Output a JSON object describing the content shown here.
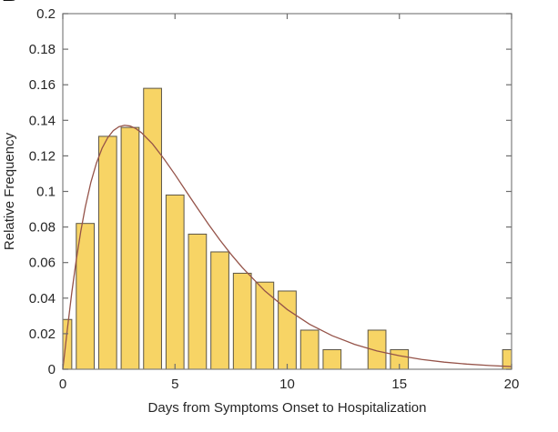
{
  "panel_label": "B",
  "colors": {
    "background": "#FFFFFF",
    "bar_fill": "#F7D465",
    "bar_edge": "#5C5546",
    "curve": "#955349",
    "axis": "#7E7E7E",
    "tick": "#6E6E6E",
    "text": "#262626"
  },
  "chart_data": {
    "type": "bar",
    "title": "",
    "xlabel": "Days from Symptoms Onset to Hospitalization",
    "ylabel": "Relative Frequency",
    "xlim": [
      0,
      20
    ],
    "ylim": [
      0,
      0.2
    ],
    "grid": false,
    "legend": "none",
    "bar_width_days": 0.8,
    "x_ticks": [
      0,
      5,
      10,
      15,
      20
    ],
    "x_tick_labels": [
      "0",
      "5",
      "10",
      "15",
      "20"
    ],
    "y_ticks": [
      0,
      0.02,
      0.04,
      0.06,
      0.08,
      0.1,
      0.12,
      0.14,
      0.16,
      0.18,
      0.2
    ],
    "y_tick_labels": [
      "0",
      "0.02",
      "0.04",
      "0.06",
      "0.08",
      "0.1",
      "0.12",
      "0.14",
      "0.16",
      "0.18",
      "0.2"
    ],
    "categories": [
      0,
      1,
      2,
      3,
      4,
      5,
      6,
      7,
      8,
      9,
      10,
      11,
      12,
      13,
      14,
      15,
      16,
      17,
      18,
      19,
      20
    ],
    "values": [
      0.028,
      0.082,
      0.131,
      0.136,
      0.158,
      0.098,
      0.076,
      0.066,
      0.054,
      0.049,
      0.044,
      0.022,
      0.011,
      0,
      0.022,
      0.011,
      0,
      0,
      0,
      0,
      0.011
    ],
    "fit_curve": {
      "name": "fitted-distribution-curve",
      "x": [
        0,
        0.2,
        0.4,
        0.6,
        0.8,
        1,
        1.25,
        1.5,
        1.75,
        2,
        2.25,
        2.5,
        2.75,
        3,
        3.25,
        3.5,
        4,
        4.5,
        5,
        5.5,
        6,
        6.5,
        7,
        7.5,
        8,
        9,
        10,
        11,
        12,
        13,
        14,
        15,
        16,
        17,
        18,
        19,
        20
      ],
      "y": [
        0,
        0.0222,
        0.0431,
        0.0615,
        0.0775,
        0.0911,
        0.1051,
        0.116,
        0.1243,
        0.1302,
        0.1342,
        0.1364,
        0.1372,
        0.1368,
        0.1354,
        0.1331,
        0.1267,
        0.1185,
        0.1095,
        0.1,
        0.0906,
        0.0814,
        0.0727,
        0.0646,
        0.0572,
        0.0441,
        0.0336,
        0.0253,
        0.0189,
        0.014,
        0.0103,
        0.0076,
        0.0055,
        0.004,
        0.0029,
        0.0021,
        0.0015
      ]
    }
  }
}
